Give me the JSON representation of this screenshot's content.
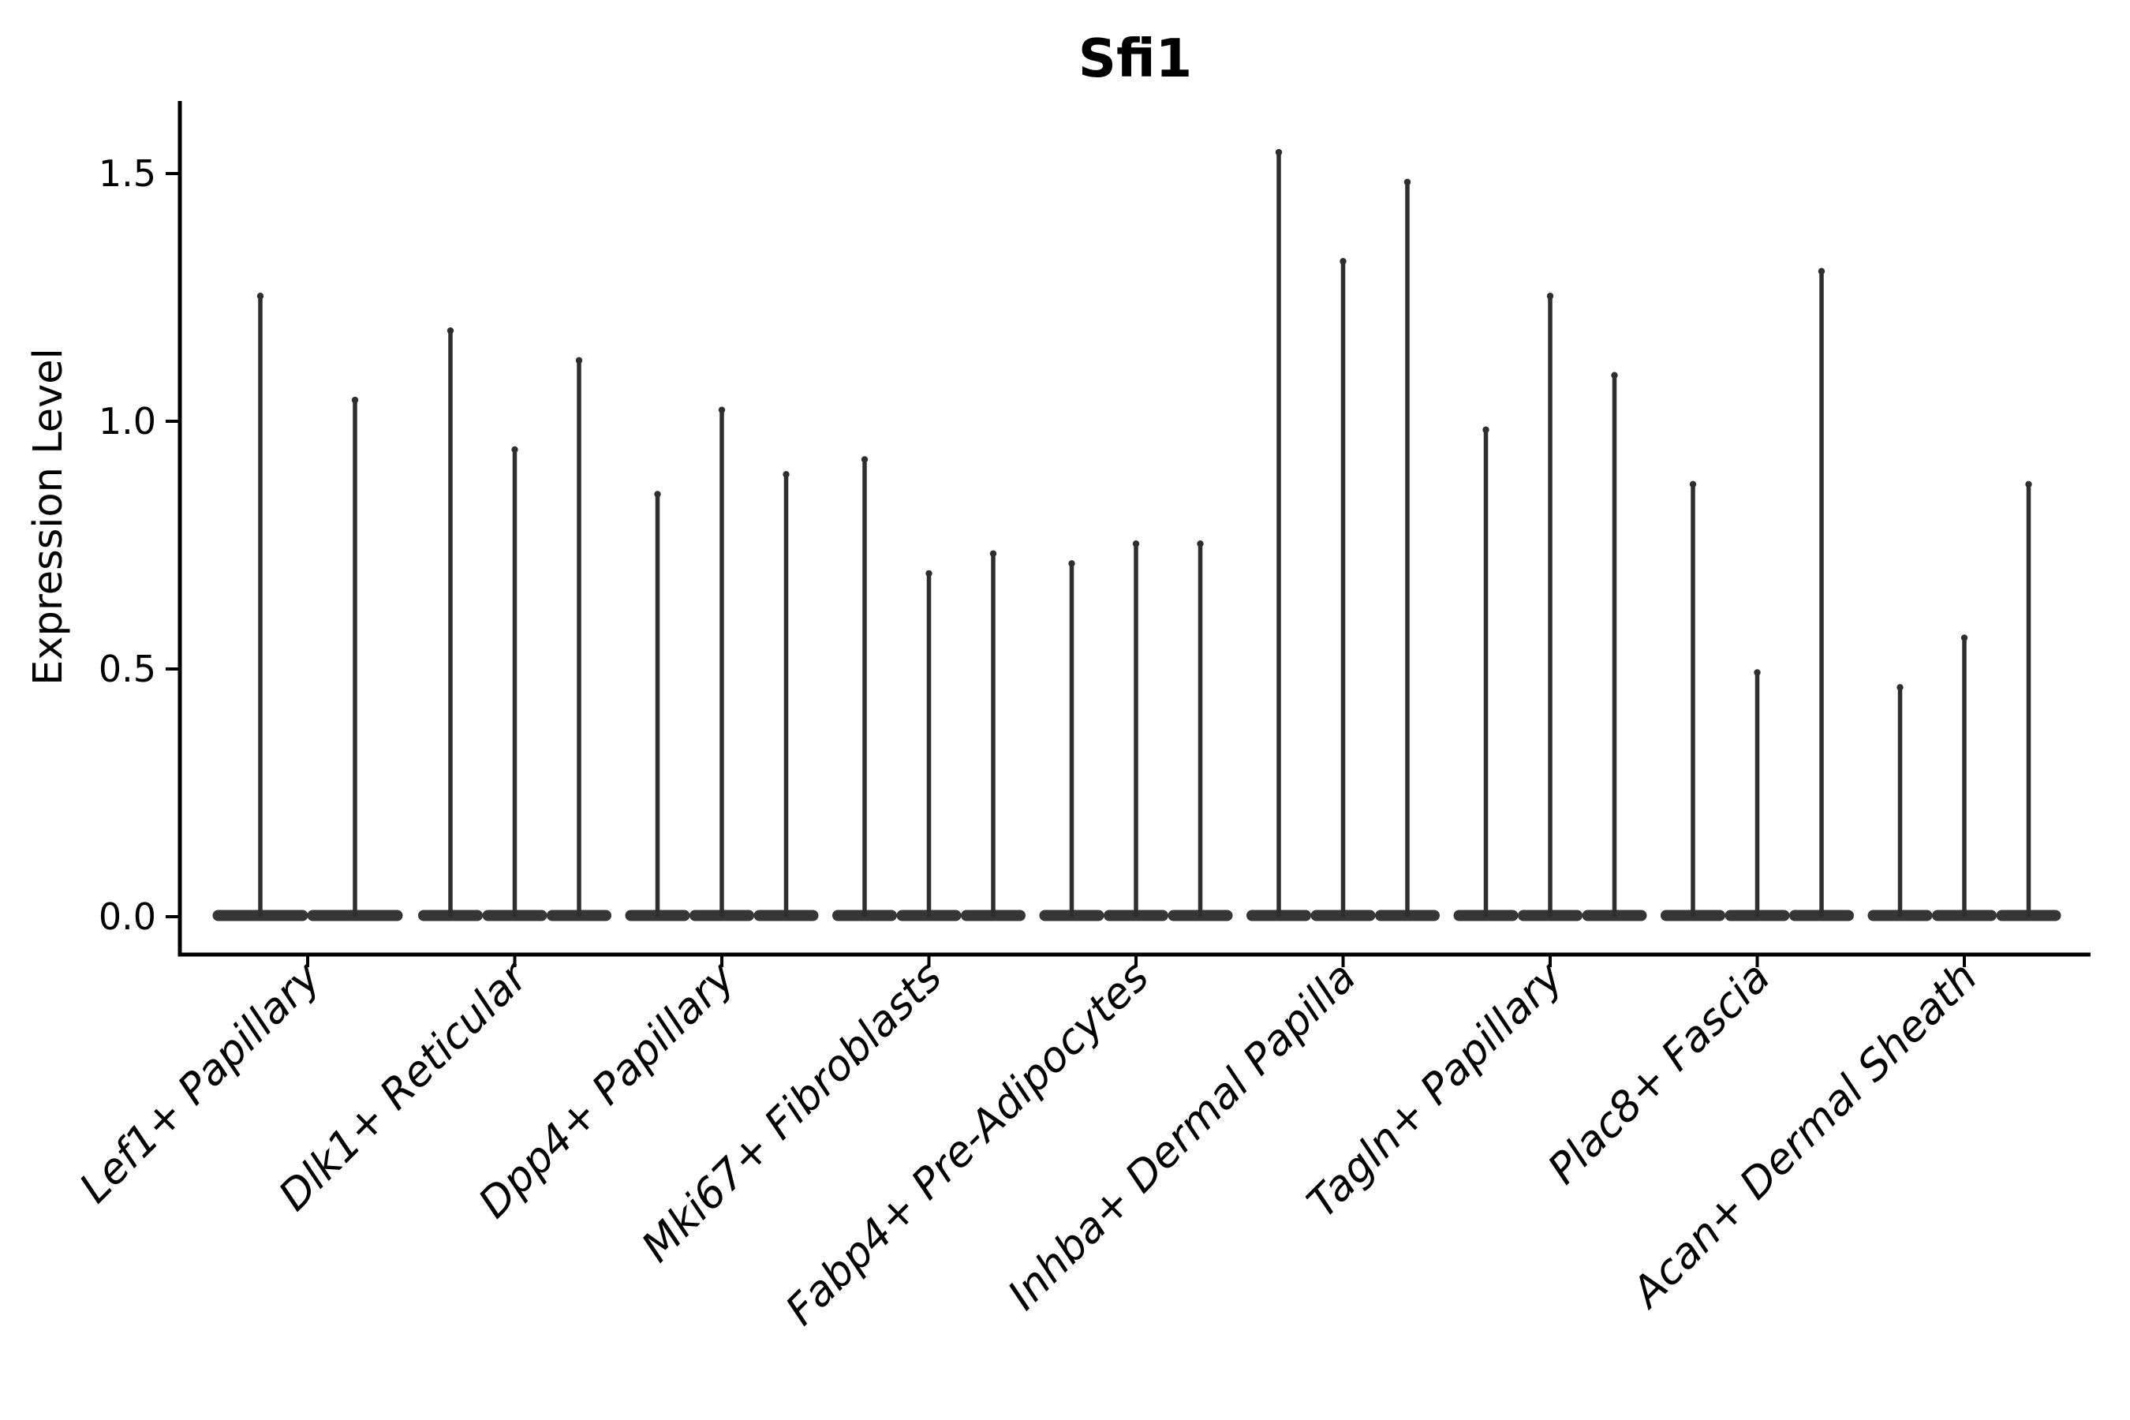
{
  "title": "Sfi1",
  "ylabel": "Expression Level",
  "chart_data": {
    "type": "violin",
    "title": "Sfi1",
    "subtitle": "",
    "xlabel": "",
    "ylabel": "Expression Level",
    "categories": [
      "Lef1+ Papillary",
      "Dlk1+ Reticular",
      "Dpp4+ Papillary",
      "Mki67+ Fibroblasts",
      "Fabp4+ Pre-Adipocytes",
      "Inhba+ Dermal Papilla",
      "Tagln+ Papillary",
      "Plac8+ Fascia",
      "Acan+ Dermal Sheath"
    ],
    "series": [
      {
        "category": "Lef1+ Papillary",
        "violin_max_values": [
          1.26,
          1.05
        ]
      },
      {
        "category": "Dlk1+ Reticular",
        "violin_max_values": [
          1.19,
          0.95,
          1.13
        ]
      },
      {
        "category": "Dpp4+ Papillary",
        "violin_max_values": [
          0.86,
          1.03,
          0.9
        ]
      },
      {
        "category": "Mki67+ Fibroblasts",
        "violin_max_values": [
          0.93,
          0.7,
          0.74
        ]
      },
      {
        "category": "Fabp4+ Pre-Adipocytes",
        "violin_max_values": [
          0.72,
          0.76,
          0.76
        ]
      },
      {
        "category": "Inhba+ Dermal Papilla",
        "violin_max_values": [
          1.55,
          1.33,
          1.49
        ]
      },
      {
        "category": "Tagln+ Papillary",
        "violin_max_values": [
          0.99,
          1.26,
          1.1
        ]
      },
      {
        "category": "Plac8+ Fascia",
        "violin_max_values": [
          0.88,
          0.5,
          1.31
        ]
      },
      {
        "category": "Acan+ Dermal Sheath",
        "violin_max_values": [
          0.47,
          0.57,
          0.88
        ]
      }
    ],
    "yticks": [
      0.0,
      0.5,
      1.0,
      1.5
    ],
    "ytick_labels": [
      "0.0",
      "0.5",
      "1.0",
      "1.5"
    ],
    "ylim": [
      -0.08,
      1.65
    ],
    "grid": false,
    "legend_position": "none",
    "violin_shape_note": "distribution mass concentrated at 0 with a thin vertical tail up to the max value",
    "colors": {
      "violin_line": "#2e2e2e",
      "violin_base": "#363636",
      "axis": "#000000",
      "text": "#000000",
      "background": "#ffffff"
    }
  }
}
